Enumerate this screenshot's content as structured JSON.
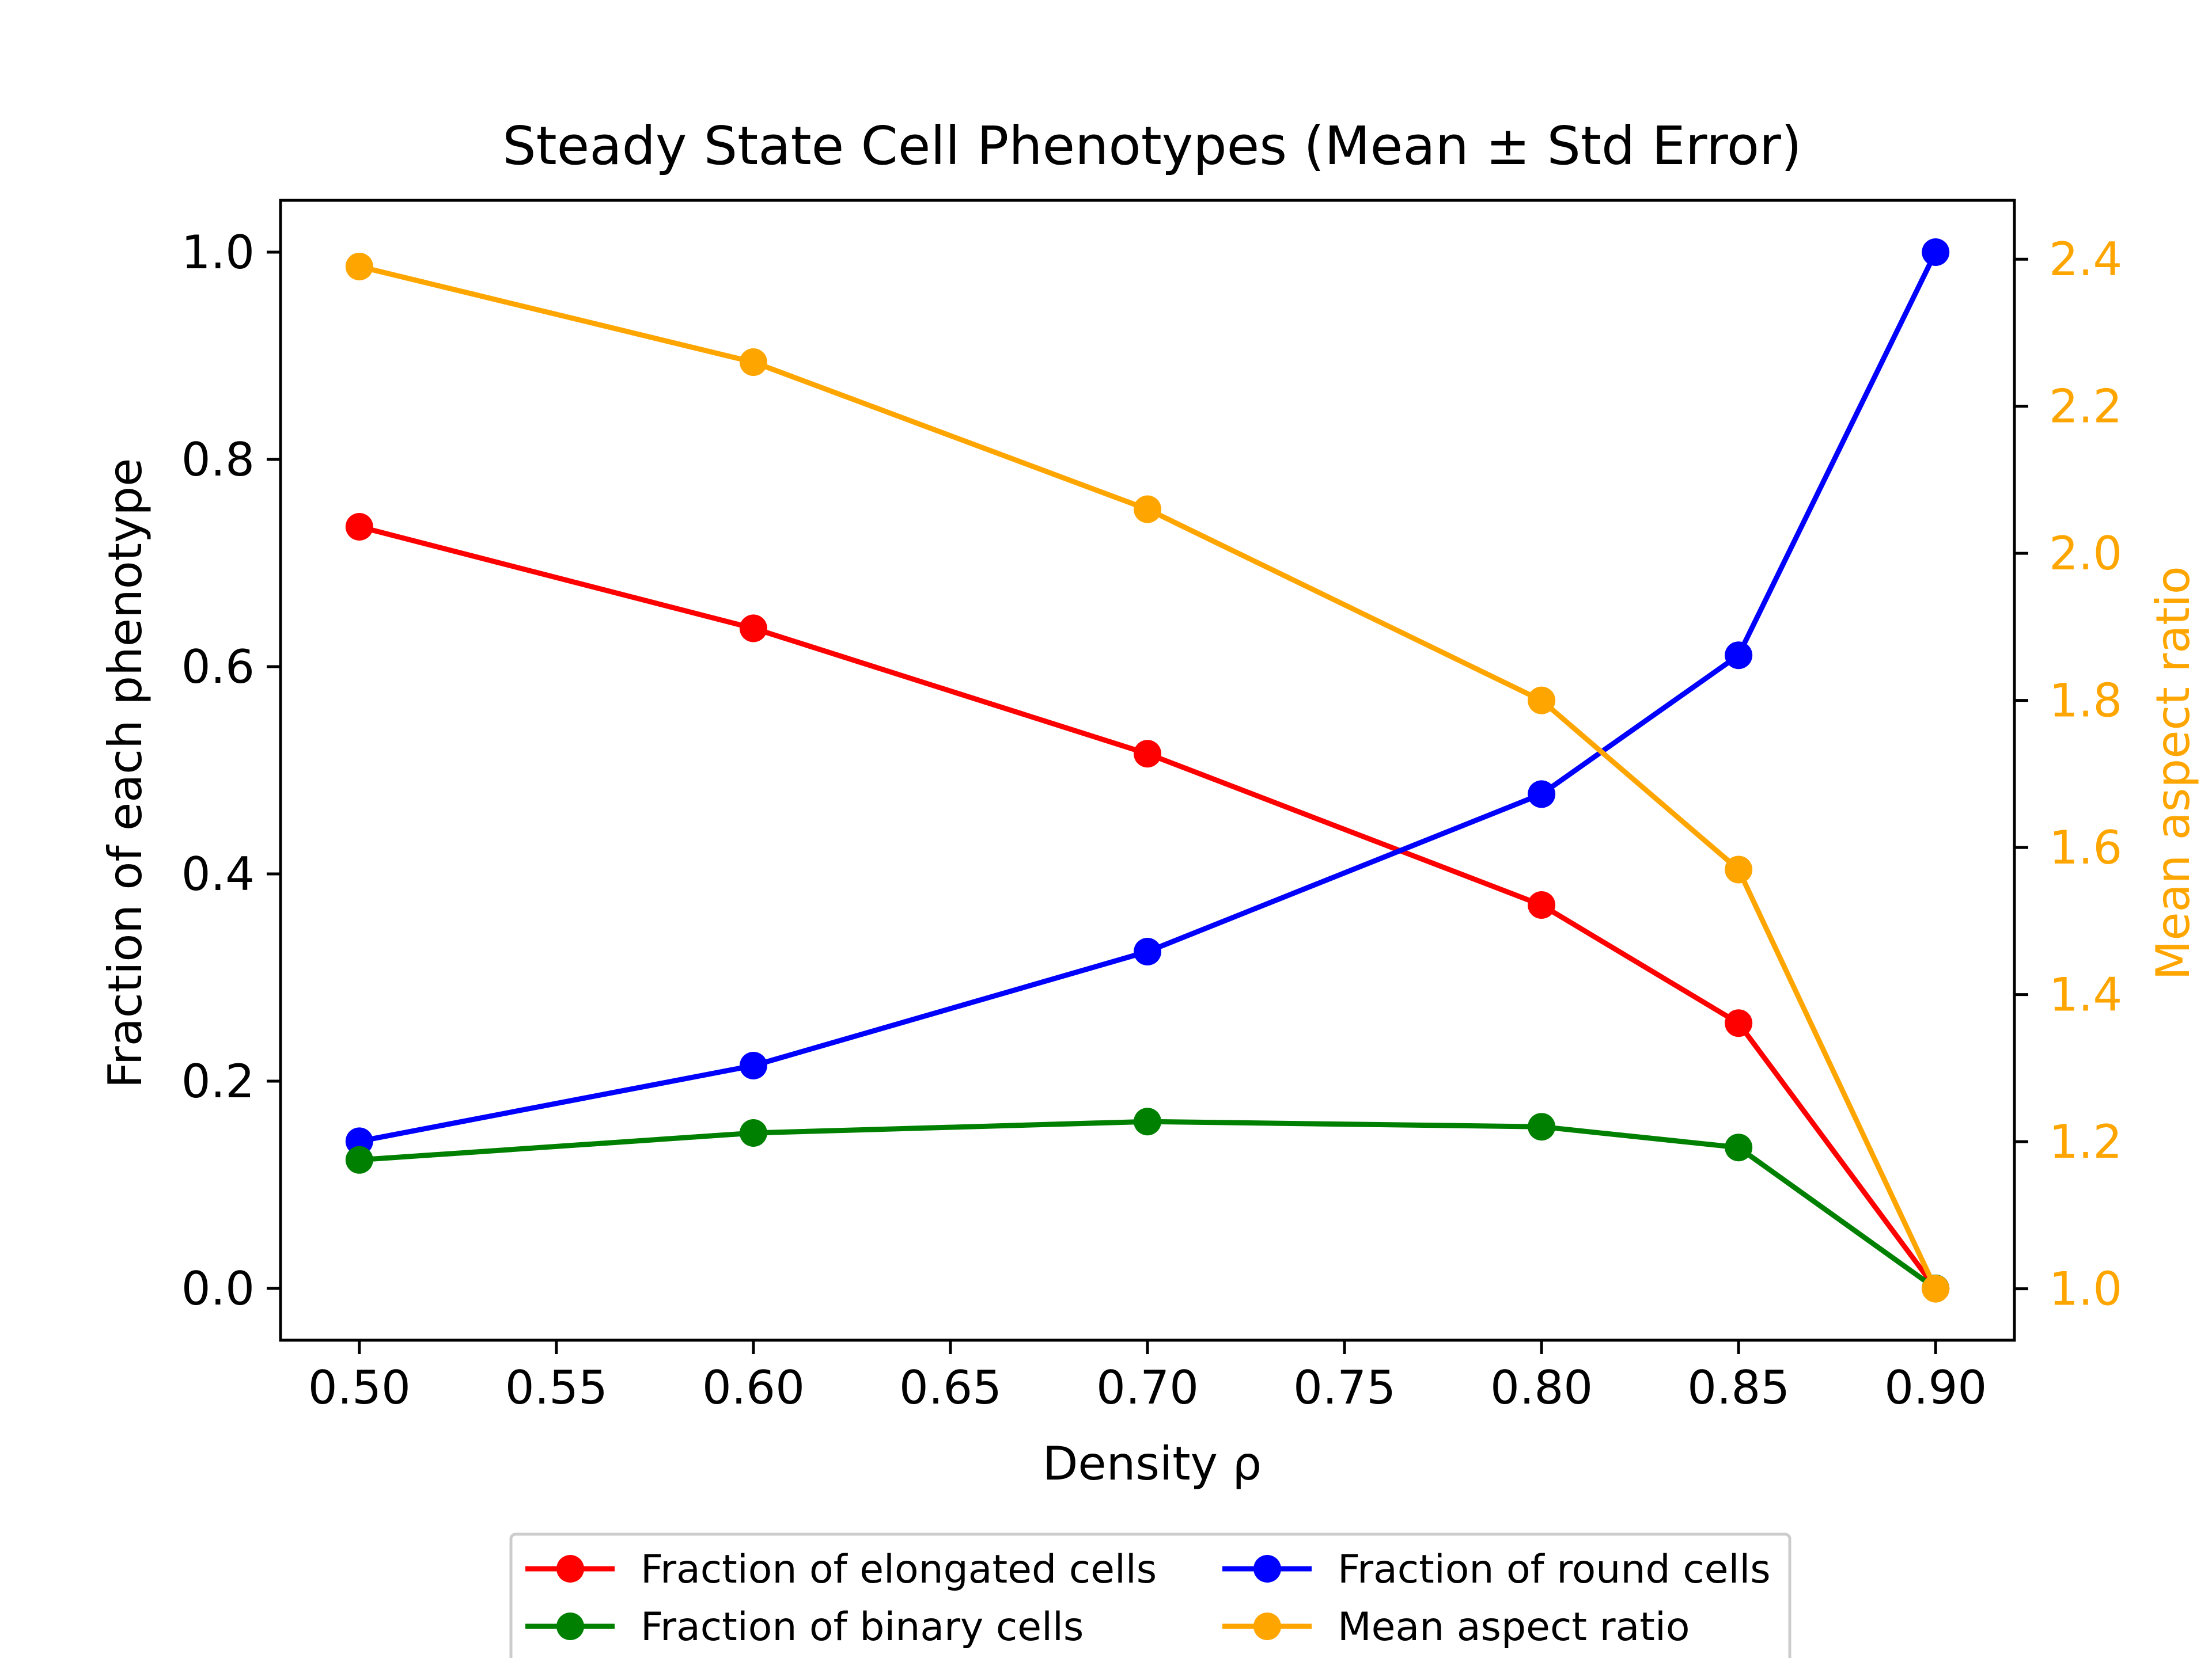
{
  "chart_data": {
    "type": "line",
    "title": "Steady State Cell Phenotypes (Mean ± Std Error)",
    "xlabel": "Density ρ",
    "ylabel": "Fraction of each phenotype",
    "ylabel_right": "Mean aspect ratio",
    "xlim": [
      0.48,
      0.92
    ],
    "ylim": [
      -0.05,
      1.05
    ],
    "ylim_right": [
      0.93,
      2.48
    ],
    "x_ticks": [
      "0.50",
      "0.55",
      "0.60",
      "0.65",
      "0.70",
      "0.75",
      "0.80",
      "0.85",
      "0.90"
    ],
    "y_ticks": [
      "0.0",
      "0.2",
      "0.4",
      "0.6",
      "0.8",
      "1.0"
    ],
    "y_right_ticks": [
      "1.0",
      "1.2",
      "1.4",
      "1.6",
      "1.8",
      "2.0",
      "2.2",
      "2.4"
    ],
    "x": [
      0.5,
      0.6,
      0.7,
      0.8,
      0.85,
      0.9
    ],
    "grid": false,
    "legend_position": "bottom-center",
    "series": [
      {
        "name": "Fraction of elongated cells",
        "axis": "left",
        "color": "#ff0000",
        "values": [
          0.735,
          0.637,
          0.516,
          0.37,
          0.256,
          0.0
        ]
      },
      {
        "name": "Fraction of round cells",
        "axis": "left",
        "color": "#0000ff",
        "values": [
          0.142,
          0.215,
          0.325,
          0.477,
          0.611,
          1.0
        ]
      },
      {
        "name": "Fraction of binary cells",
        "axis": "left",
        "color": "#008000",
        "values": [
          0.124,
          0.15,
          0.161,
          0.156,
          0.136,
          0.0
        ]
      },
      {
        "name": "Mean aspect ratio",
        "axis": "right",
        "color": "#ffa500",
        "values": [
          2.39,
          2.26,
          2.06,
          1.8,
          1.57,
          1.0
        ]
      }
    ],
    "legend_order": [
      0,
      2,
      1,
      3
    ],
    "right_axis_color": "#ffa500"
  }
}
